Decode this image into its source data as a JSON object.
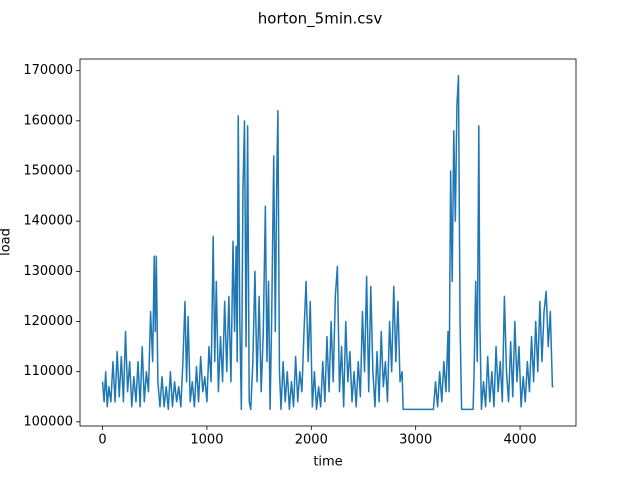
{
  "chart_data": {
    "type": "line",
    "title": "horton_5min.csv",
    "x_label": "time",
    "y_label": "load",
    "x": [
      0,
      15,
      30,
      45,
      60,
      80,
      100,
      120,
      140,
      160,
      180,
      200,
      220,
      240,
      260,
      280,
      300,
      320,
      340,
      360,
      380,
      400,
      420,
      440,
      460,
      480,
      495,
      505,
      515,
      530,
      550,
      570,
      590,
      610,
      630,
      650,
      670,
      690,
      710,
      730,
      750,
      770,
      790,
      805,
      820,
      840,
      860,
      880,
      900,
      920,
      940,
      960,
      980,
      1000,
      1020,
      1040,
      1060,
      1075,
      1090,
      1110,
      1130,
      1150,
      1170,
      1190,
      1210,
      1230,
      1250,
      1265,
      1280,
      1290,
      1300,
      1315,
      1330,
      1345,
      1360,
      1375,
      1390,
      1405,
      1420,
      1440,
      1460,
      1480,
      1500,
      1520,
      1540,
      1560,
      1575,
      1590,
      1605,
      1620,
      1640,
      1655,
      1670,
      1680,
      1695,
      1710,
      1730,
      1750,
      1770,
      1790,
      1810,
      1830,
      1850,
      1870,
      1890,
      1910,
      1930,
      1950,
      1970,
      1990,
      2010,
      2030,
      2050,
      2070,
      2090,
      2110,
      2130,
      2150,
      2170,
      2190,
      2210,
      2230,
      2250,
      2270,
      2290,
      2310,
      2330,
      2350,
      2370,
      2390,
      2410,
      2430,
      2450,
      2470,
      2490,
      2510,
      2530,
      2550,
      2570,
      2590,
      2610,
      2630,
      2650,
      2670,
      2690,
      2710,
      2730,
      2750,
      2770,
      2790,
      2810,
      2830,
      2850,
      2870,
      2880,
      3170,
      3190,
      3210,
      3230,
      3250,
      3270,
      3290,
      3310,
      3320,
      3335,
      3350,
      3365,
      3380,
      3395,
      3410,
      3425,
      3440,
      3450,
      3550,
      3560,
      3575,
      3590,
      3605,
      3615,
      3630,
      3650,
      3670,
      3690,
      3710,
      3730,
      3750,
      3770,
      3790,
      3810,
      3830,
      3850,
      3870,
      3890,
      3910,
      3930,
      3950,
      3970,
      3990,
      4010,
      4030,
      4050,
      4070,
      4090,
      4110,
      4130,
      4150,
      4170,
      4190,
      4210,
      4230,
      4250,
      4270,
      4290,
      4310,
      4320
    ],
    "series": [
      {
        "color": "#1f77b4",
        "values": [
          108000,
          104000,
          110000,
          103000,
          107000,
          104000,
          112000,
          104000,
          114000,
          105000,
          113000,
          104000,
          118000,
          106000,
          112000,
          103000,
          109000,
          104000,
          112000,
          103000,
          115000,
          104000,
          110000,
          106000,
          122000,
          112000,
          133000,
          118000,
          133000,
          108000,
          103000,
          109000,
          103000,
          107000,
          102500,
          110000,
          103000,
          108000,
          104000,
          107000,
          103000,
          112000,
          124000,
          108000,
          121000,
          104000,
          108000,
          103000,
          111000,
          104000,
          113000,
          106000,
          109000,
          104000,
          115000,
          108000,
          137000,
          112000,
          128000,
          106000,
          117000,
          108000,
          124000,
          110000,
          125000,
          108000,
          136000,
          118000,
          135000,
          112000,
          161000,
          120000,
          102500,
          146000,
          160000,
          115000,
          159000,
          104000,
          102500,
          112000,
          130000,
          108000,
          125000,
          106000,
          118000,
          143000,
          112000,
          128000,
          102500,
          120000,
          153000,
          118000,
          150000,
          162000,
          110000,
          102500,
          112000,
          104000,
          110000,
          102500,
          108000,
          103000,
          113000,
          104000,
          110000,
          106000,
          118000,
          128000,
          112000,
          124000,
          103000,
          110000,
          102500,
          107000,
          103000,
          112000,
          104000,
          117000,
          106000,
          120000,
          108000,
          125000,
          131000,
          106000,
          115000,
          103000,
          120000,
          108000,
          114000,
          104000,
          110000,
          103000,
          112000,
          105000,
          122000,
          110000,
          129000,
          106000,
          127000,
          110000,
          103000,
          114000,
          104000,
          118000,
          107000,
          112000,
          104000,
          120000,
          110000,
          127000,
          112000,
          124000,
          108000,
          110000,
          102500,
          102500,
          108000,
          103000,
          110000,
          104000,
          112000,
          106000,
          118000,
          106000,
          150000,
          128000,
          158000,
          140000,
          163000,
          169000,
          120000,
          102500,
          102500,
          102500,
          110000,
          128000,
          112000,
          159000,
          120000,
          102500,
          108000,
          103000,
          113000,
          104000,
          110000,
          103000,
          115000,
          106000,
          112000,
          104000,
          125000,
          110000,
          104000,
          116000,
          105000,
          120000,
          108000,
          115000,
          103000,
          109000,
          104000,
          112000,
          106000,
          117000,
          108000,
          120000,
          110000,
          124000,
          112000,
          122000,
          126000,
          115000,
          122000,
          107000,
          107000
        ]
      }
    ],
    "xlim": [
      -216,
      4536
    ],
    "ylim": [
      99175,
      172325
    ],
    "xticks": [
      0,
      1000,
      2000,
      3000,
      4000
    ],
    "yticks": [
      100000,
      110000,
      120000,
      130000,
      140000,
      150000,
      160000,
      170000
    ]
  }
}
